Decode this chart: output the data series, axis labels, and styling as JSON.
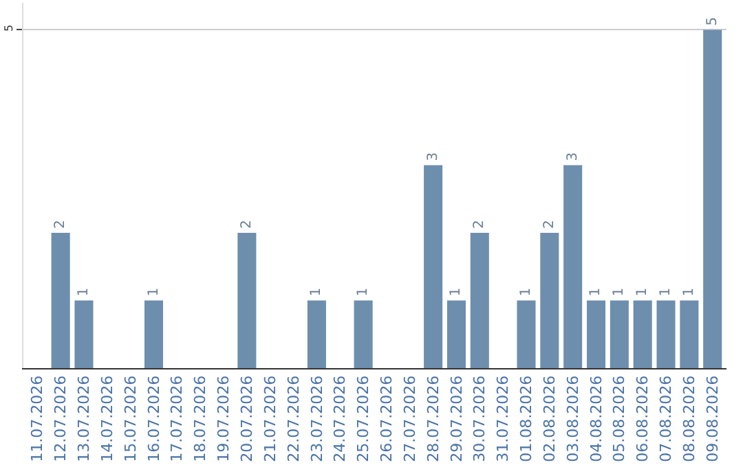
{
  "chart_data": {
    "type": "bar",
    "categories": [
      "11.07.2026",
      "12.07.2026",
      "13.07.2026",
      "14.07.2026",
      "15.07.2026",
      "16.07.2026",
      "17.07.2026",
      "18.07.2026",
      "19.07.2026",
      "20.07.2026",
      "21.07.2026",
      "22.07.2026",
      "23.07.2026",
      "24.07.2026",
      "25.07.2026",
      "26.07.2026",
      "27.07.2026",
      "28.07.2026",
      "29.07.2026",
      "30.07.2026",
      "31.07.2026",
      "01.08.2026",
      "02.08.2026",
      "03.08.2026",
      "04.08.2026",
      "05.08.2026",
      "06.08.2026",
      "07.08.2026",
      "08.08.2026",
      "09.08.2026"
    ],
    "values": [
      0,
      2,
      1,
      0,
      0,
      1,
      0,
      0,
      0,
      2,
      0,
      0,
      1,
      0,
      1,
      0,
      0,
      3,
      1,
      2,
      0,
      1,
      2,
      3,
      1,
      1,
      1,
      1,
      1,
      5
    ],
    "value_labels": [
      null,
      "2",
      "1",
      null,
      null,
      "1",
      null,
      null,
      null,
      "2",
      null,
      null,
      "1",
      null,
      "1",
      null,
      null,
      "3",
      "1",
      "2",
      null,
      "1",
      "2",
      "3",
      "1",
      "1",
      "1",
      "1",
      "1",
      "5"
    ],
    "color": "#6e8eae",
    "ylim": [
      0,
      5.4
    ],
    "yticks": [
      5
    ],
    "grid": "y",
    "legend": false
  }
}
